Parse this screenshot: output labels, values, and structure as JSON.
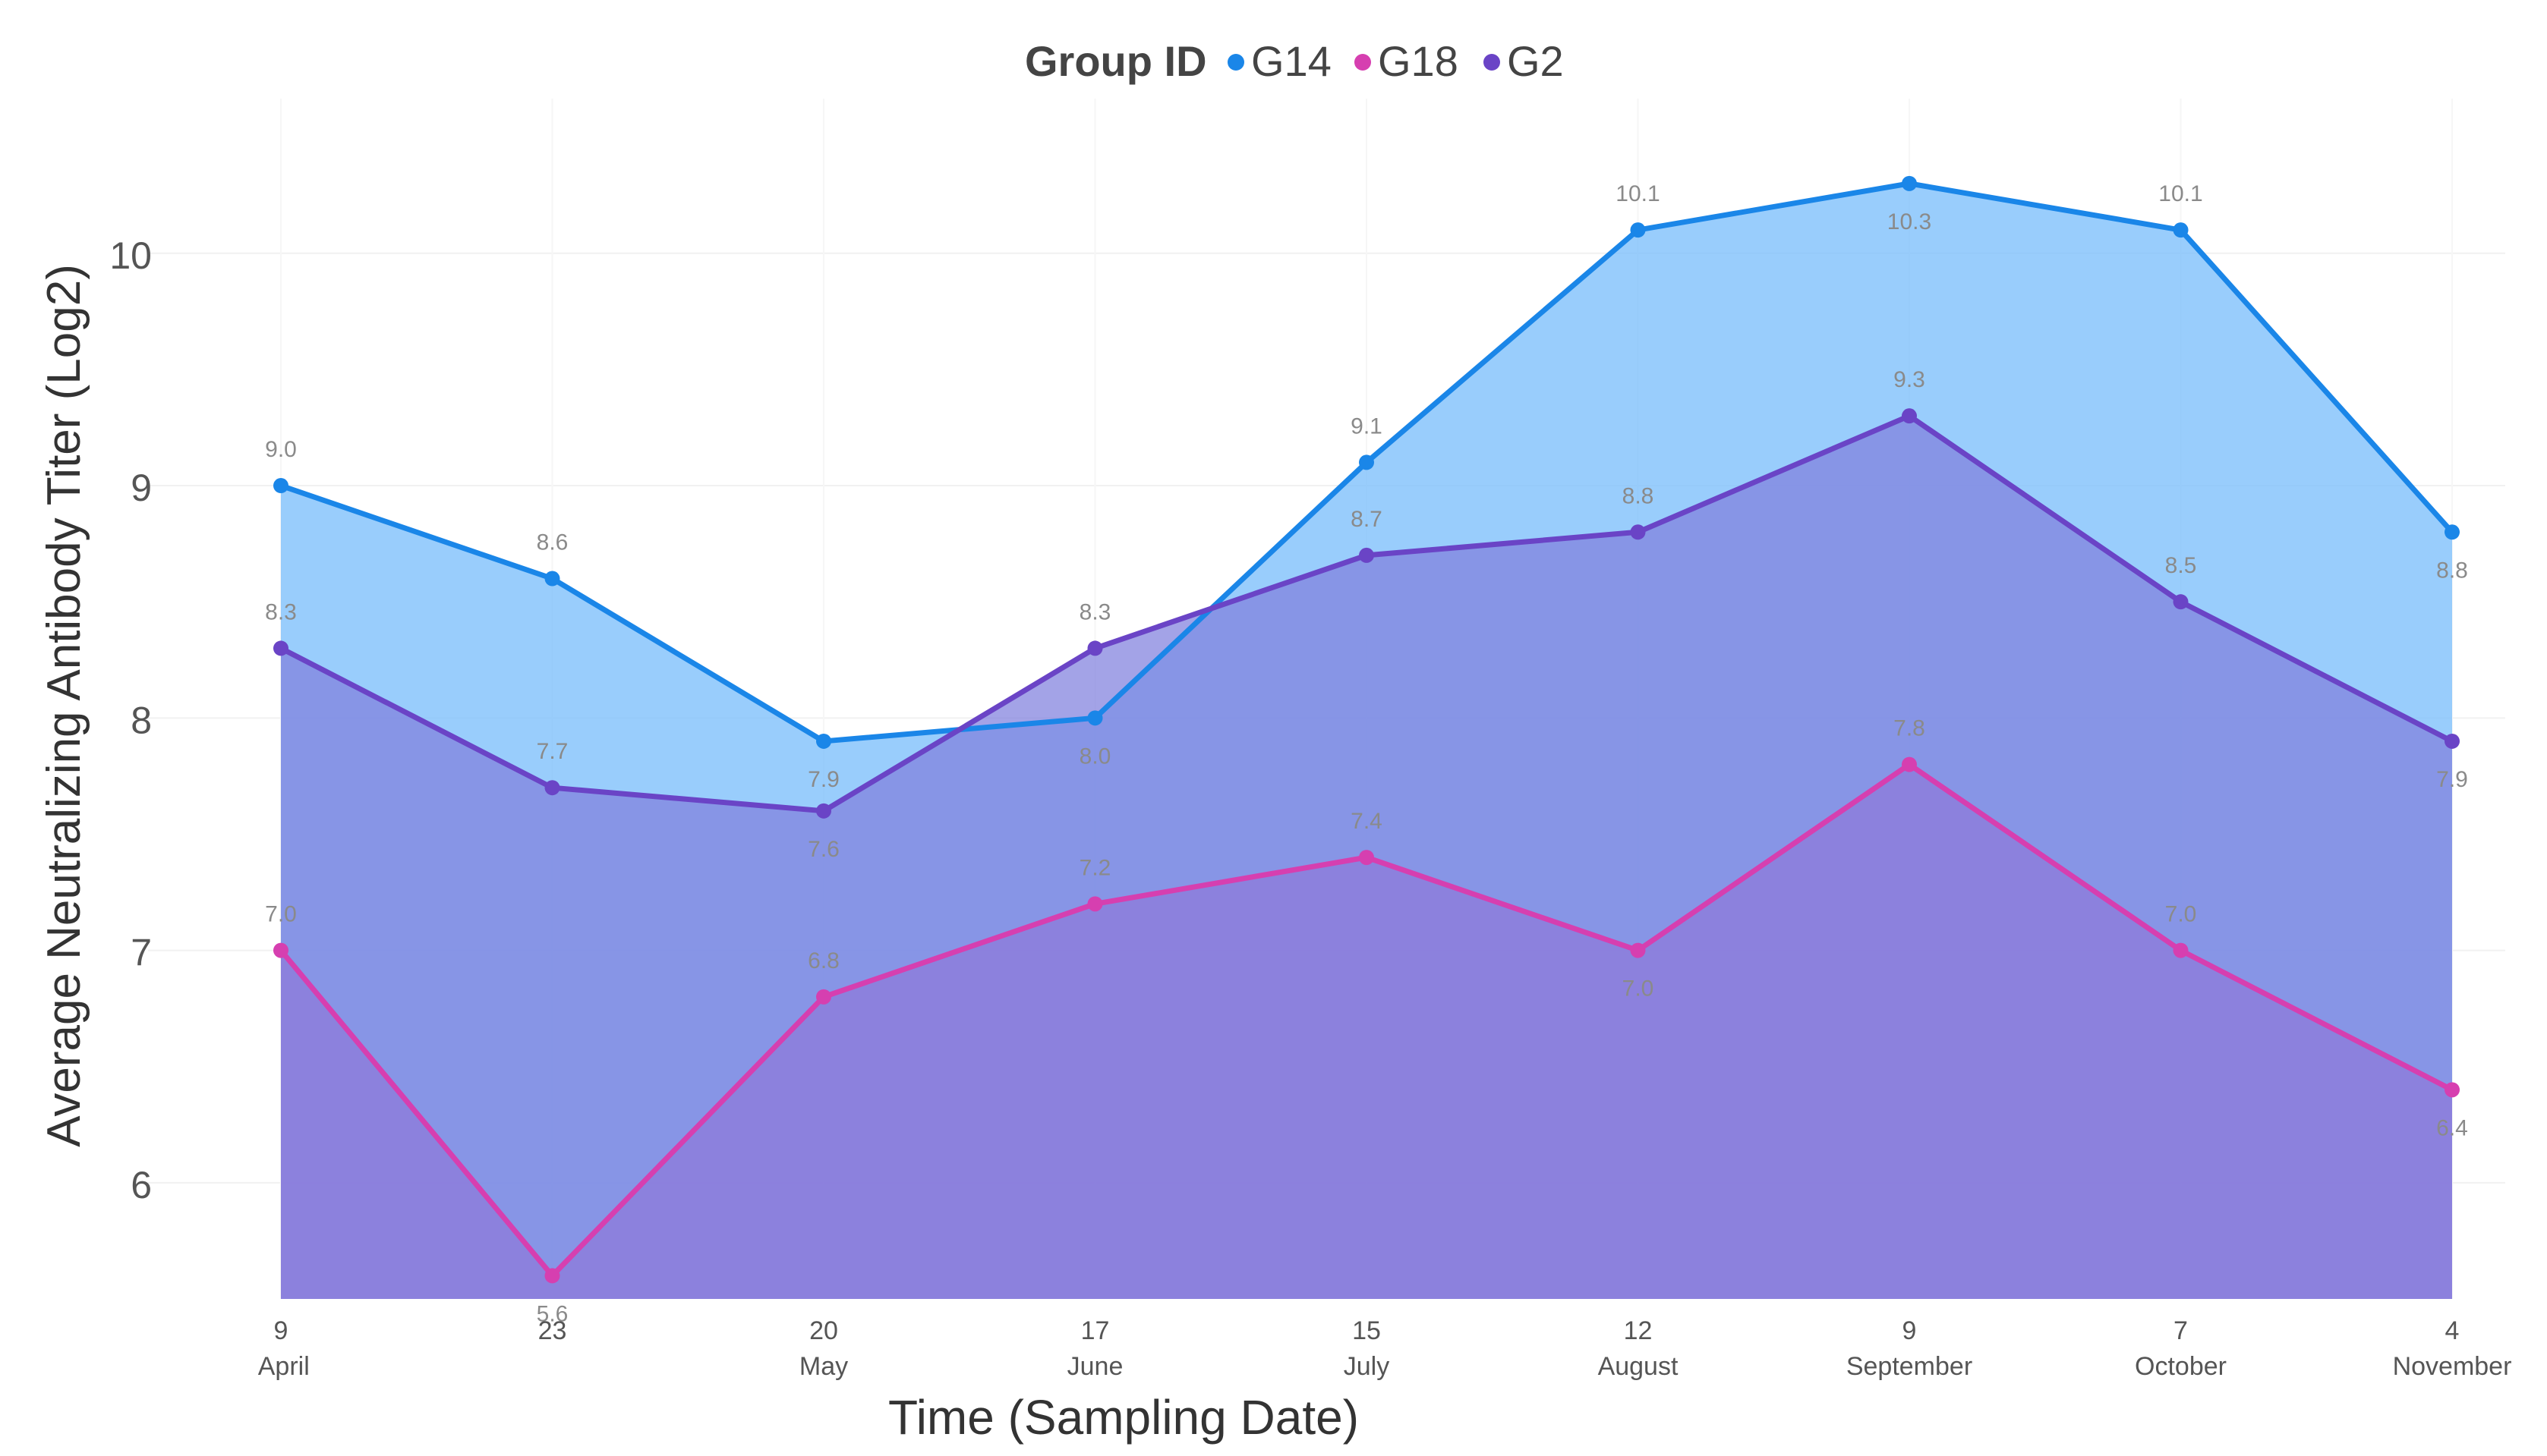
{
  "chart_data": {
    "type": "area",
    "title": "",
    "xlabel": "Time (Sampling Date)",
    "ylabel": "Average Neutralizing Antibody Titer (Log2)",
    "ylim": [
      5.5,
      10.6
    ],
    "yticks": [
      6,
      7,
      8,
      9,
      10
    ],
    "grid": true,
    "legend": {
      "title": "Group ID",
      "position": "top-center"
    },
    "x_ticks": [
      {
        "day": "9",
        "month": "April"
      },
      {
        "day": "23",
        "month": ""
      },
      {
        "day": "20",
        "month": "May"
      },
      {
        "day": "17",
        "month": "June"
      },
      {
        "day": "15",
        "month": "July"
      },
      {
        "day": "12",
        "month": "August"
      },
      {
        "day": "9",
        "month": "September"
      },
      {
        "day": "7",
        "month": "October"
      },
      {
        "day": "4",
        "month": "November"
      }
    ],
    "month_labels": [
      "April",
      "May",
      "June",
      "July",
      "August",
      "September",
      "October",
      "November"
    ],
    "series": [
      {
        "name": "G14",
        "color": "#1a86e8",
        "fill": "#7fc0fb",
        "values": [
          9.0,
          8.6,
          7.9,
          8.0,
          9.1,
          10.1,
          10.3,
          10.1,
          8.8
        ],
        "labels": [
          "9.0",
          "8.6",
          "7.9",
          "8.0",
          "9.1",
          "10.1",
          "10.3",
          "10.1",
          "8.8"
        ]
      },
      {
        "name": "G18",
        "color": "#d63fb0",
        "fill": "#b468cc",
        "values": [
          7.0,
          5.6,
          6.8,
          7.2,
          7.4,
          7.0,
          7.8,
          7.0,
          6.4
        ],
        "labels": [
          "7.0",
          "5.6",
          "6.8",
          "7.2",
          "7.4",
          "7.0",
          "7.8",
          "7.0",
          "6.4"
        ]
      },
      {
        "name": "G2",
        "color": "#6a44c6",
        "fill": "#8080de",
        "values": [
          8.3,
          7.7,
          7.6,
          8.3,
          8.7,
          8.8,
          9.3,
          8.5,
          7.9
        ],
        "labels": [
          "8.3",
          "7.7",
          "7.6",
          "8.3",
          "8.7",
          "8.8",
          "9.3",
          "8.5",
          "7.9"
        ]
      }
    ]
  }
}
